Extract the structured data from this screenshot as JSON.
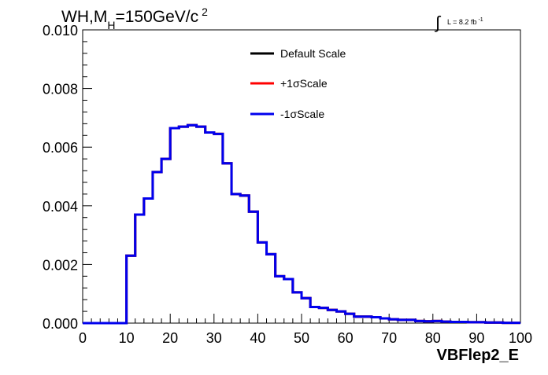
{
  "header": {
    "title_main": "WH,M",
    "title_sub": "H",
    "title_rest": "=150GeV/c",
    "title_sup": "2",
    "lumi_text": "L = 8.2 fb",
    "lumi_sup": "-1"
  },
  "chart_data": {
    "type": "line",
    "title": "WH,M_H=150GeV/c^2",
    "xlabel": "VBFlep2_E",
    "ylabel": "",
    "xlim": [
      0,
      100
    ],
    "ylim": [
      0,
      0.01
    ],
    "x_ticks": [
      "0",
      "10",
      "20",
      "30",
      "40",
      "50",
      "60",
      "70",
      "80",
      "90",
      "100"
    ],
    "y_ticks": [
      "0.000",
      "0.002",
      "0.004",
      "0.006",
      "0.008",
      "0.010"
    ],
    "bin_edges": [
      0,
      2,
      4,
      6,
      8,
      10,
      12,
      14,
      16,
      18,
      20,
      22,
      24,
      26,
      28,
      30,
      32,
      34,
      36,
      38,
      40,
      42,
      44,
      46,
      48,
      50,
      52,
      54,
      56,
      58,
      60,
      62,
      64,
      66,
      68,
      70,
      72,
      74,
      76,
      78,
      80,
      82,
      84,
      86,
      88,
      90,
      92,
      94,
      96,
      98,
      100
    ],
    "legend": {
      "placement": "top-center"
    },
    "series": [
      {
        "name": "Default Scale",
        "color": "#000000",
        "values": [
          0,
          0,
          0,
          0,
          0,
          0.0023,
          0.0037,
          0.00425,
          0.00515,
          0.0056,
          0.00665,
          0.0067,
          0.00675,
          0.0067,
          0.0065,
          0.00645,
          0.00545,
          0.0044,
          0.00435,
          0.0038,
          0.00275,
          0.00235,
          0.0016,
          0.0015,
          0.00105,
          0.00085,
          0.00055,
          0.00052,
          0.00045,
          0.0004,
          0.00032,
          0.00022,
          0.00022,
          0.0002,
          0.00016,
          0.00013,
          0.00011,
          0.00011,
          7e-05,
          6e-05,
          7e-05,
          5e-05,
          4e-05,
          4e-05,
          3e-05,
          3e-05,
          2e-05,
          2e-05,
          1e-05,
          1e-05
        ]
      },
      {
        "name": "+1σScale",
        "color": "#ff0000",
        "values": [
          0,
          0,
          0,
          0,
          0,
          0.0023,
          0.0037,
          0.00425,
          0.00515,
          0.0056,
          0.00665,
          0.0067,
          0.00675,
          0.0067,
          0.0065,
          0.00645,
          0.00545,
          0.0044,
          0.00435,
          0.0038,
          0.00275,
          0.00235,
          0.0016,
          0.0015,
          0.00105,
          0.00085,
          0.00055,
          0.00052,
          0.00045,
          0.0004,
          0.00032,
          0.00022,
          0.00022,
          0.0002,
          0.00016,
          0.00013,
          0.00011,
          0.00011,
          7e-05,
          6e-05,
          7e-05,
          5e-05,
          4e-05,
          4e-05,
          3e-05,
          3e-05,
          2e-05,
          2e-05,
          1e-05,
          1e-05
        ]
      },
      {
        "name": "-1σScale",
        "color": "#0000ee",
        "values": [
          0,
          0,
          0,
          0,
          0,
          0.0023,
          0.0037,
          0.00425,
          0.00515,
          0.0056,
          0.00665,
          0.0067,
          0.00675,
          0.0067,
          0.0065,
          0.00645,
          0.00545,
          0.0044,
          0.00435,
          0.0038,
          0.00275,
          0.00235,
          0.0016,
          0.0015,
          0.00105,
          0.00085,
          0.00055,
          0.00052,
          0.00045,
          0.0004,
          0.00032,
          0.00022,
          0.00022,
          0.0002,
          0.00016,
          0.00013,
          0.00011,
          0.00011,
          7e-05,
          6e-05,
          7e-05,
          5e-05,
          4e-05,
          4e-05,
          3e-05,
          3e-05,
          2e-05,
          2e-05,
          1e-05,
          1e-05
        ]
      }
    ]
  }
}
